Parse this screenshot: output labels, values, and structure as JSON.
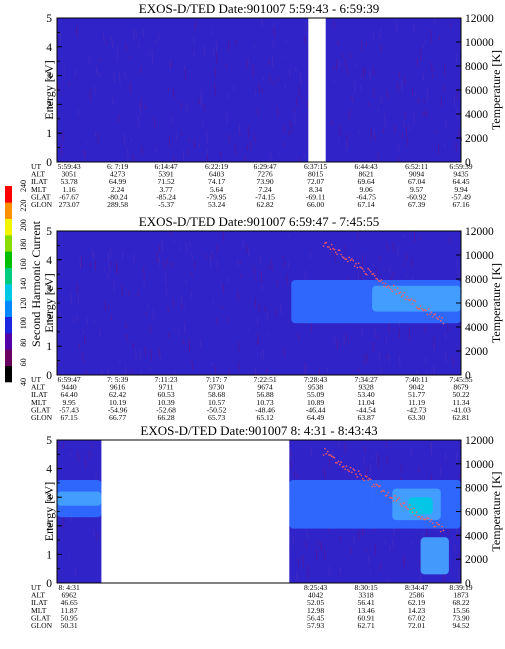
{
  "colorbar": {
    "label": "Second Harmonic Current",
    "ticks": [
      "40",
      "60",
      "80",
      "100",
      "120",
      "140",
      "160",
      "180",
      "200",
      "220",
      "240"
    ],
    "colors": [
      "#000000",
      "#6a005f",
      "#5200a8",
      "#1a26e0",
      "#0089ff",
      "#00c8e6",
      "#00cc80",
      "#00c000",
      "#88dc00",
      "#f4f400",
      "#ff9000",
      "#ff0000"
    ]
  },
  "chart_data": [
    {
      "type": "heatmap",
      "title": "EXOS-D/TED  Date:901007  5:59:43 - 6:59:39",
      "ylabel": "Energy [eV]",
      "y2label": "Temperature [K]",
      "ylim": [
        0,
        5
      ],
      "y2lim": [
        0,
        12000
      ],
      "yticks": [
        "0",
        "1",
        "2",
        "3",
        "4",
        "5"
      ],
      "y2ticks": [
        "0",
        "2000",
        "4000",
        "6000",
        "8000",
        "10000",
        "12000"
      ],
      "background": "#3024c8",
      "gaps": [
        [
          0.622,
          0.665
        ]
      ],
      "features": [],
      "ephemeris": {
        "labels": [
          "UT",
          "ALT",
          "ILAT",
          "MLT",
          "GLAT",
          "GLON"
        ],
        "columns": [
          [
            "5:59:43",
            "3051",
            "53.78",
            "1.16",
            "-67.67",
            "273.07"
          ],
          [
            "6: 7:19",
            "4273",
            "64.99",
            "2.24",
            "-80.24",
            "289.58"
          ],
          [
            "6:14:47",
            "5391",
            "71.52",
            "3.77",
            "-85.24",
            "-5.37"
          ],
          [
            "6:22:19",
            "6403",
            "74.17",
            "5.64",
            "-79.95",
            "53.24"
          ],
          [
            "6:29:47",
            "7276",
            "73.90",
            "7.24",
            "-74.15",
            "62.82"
          ],
          [
            "6:37:15",
            "8015",
            "72.07",
            "8.34",
            "-69.11",
            "66.00"
          ],
          [
            "6:44:43",
            "8621",
            "69.64",
            "9.06",
            "-64.75",
            "67.14"
          ],
          [
            "6:52:11",
            "9094",
            "67.04",
            "9.57",
            "-60.92",
            "67.39"
          ],
          [
            "6:59:39",
            "9435",
            "64.45",
            "9.94",
            "-57.49",
            "67.16"
          ]
        ]
      }
    },
    {
      "type": "heatmap",
      "title": "EXOS-D/TED  Date:901007  6:59:47 - 7:45:55",
      "ylabel": "Energy [eV]",
      "y2label": "Temperature [K]",
      "ylim": [
        0,
        5
      ],
      "y2lim": [
        0,
        12000
      ],
      "yticks": [
        "0",
        "1",
        "2",
        "3",
        "4",
        "5"
      ],
      "y2ticks": [
        "0",
        "2000",
        "4000",
        "6000",
        "8000",
        "10000",
        "12000"
      ],
      "background": "#3024c8",
      "gaps": [],
      "features": [
        {
          "x": [
            0.58,
            1.0
          ],
          "y": [
            1.8,
            3.3
          ],
          "color": "#2f6cff"
        },
        {
          "x": [
            0.78,
            1.0
          ],
          "y": [
            2.2,
            3.1
          ],
          "color": "#45a0ff"
        }
      ],
      "ephemeris": {
        "labels": [
          "UT",
          "ALT",
          "ILAT",
          "MLT",
          "GLAT",
          "GLON"
        ],
        "columns": [
          [
            "6:59:47",
            "9440",
            "64.40",
            "9.95",
            "-57.43",
            "67.15"
          ],
          [
            "7: 5:39",
            "9616",
            "62.42",
            "10.19",
            "-54.96",
            "66.77"
          ],
          [
            "7:11:23",
            "9711",
            "60.53",
            "10.39",
            "-52.68",
            "66.28"
          ],
          [
            "7:17: 7",
            "9730",
            "58.68",
            "10.57",
            "-50.52",
            "65.73"
          ],
          [
            "7:22:51",
            "9674",
            "56.88",
            "10.73",
            "-48.46",
            "65.12"
          ],
          [
            "7:28:43",
            "9538",
            "55.09",
            "10.89",
            "-46.44",
            "64.49"
          ],
          [
            "7:34:27",
            "9328",
            "53.40",
            "11.04",
            "-44.54",
            "63.87"
          ],
          [
            "7:40:11",
            "9042",
            "51.77",
            "11.19",
            "-42.73",
            "63.30"
          ],
          [
            "7:45:55",
            "8679",
            "50.22",
            "11.34",
            "-41.03",
            "62.81"
          ]
        ]
      }
    },
    {
      "type": "heatmap",
      "title": "EXOS-D/TED  Date:901007  8: 4:31 - 8:43:43",
      "ylabel": "Energy [eV]",
      "y2label": "Temperature [K]",
      "ylim": [
        0,
        5
      ],
      "y2lim": [
        0,
        12000
      ],
      "yticks": [
        "0",
        "1",
        "2",
        "3",
        "4",
        "5"
      ],
      "y2ticks": [
        "0",
        "2000",
        "4000",
        "6000",
        "8000",
        "10000",
        "12000"
      ],
      "background": "#3024c8",
      "gaps": [
        [
          0.11,
          0.575
        ]
      ],
      "features": [
        {
          "x": [
            0.0,
            0.11
          ],
          "y": [
            2.3,
            3.6
          ],
          "color": "#2f6cff"
        },
        {
          "x": [
            0.0,
            0.11
          ],
          "y": [
            2.7,
            3.2
          ],
          "color": "#45a0ff"
        },
        {
          "x": [
            0.575,
            1.0
          ],
          "y": [
            1.9,
            3.6
          ],
          "color": "#2f6cff"
        },
        {
          "x": [
            0.83,
            0.95
          ],
          "y": [
            2.2,
            3.3
          ],
          "color": "#45a0ff"
        },
        {
          "x": [
            0.87,
            0.93
          ],
          "y": [
            2.4,
            3.0
          ],
          "color": "#00c8e6"
        },
        {
          "x": [
            0.9,
            0.97
          ],
          "y": [
            0.3,
            1.6
          ],
          "color": "#45a0ff"
        }
      ],
      "ephemeris": {
        "labels": [
          "UT",
          "ALT",
          "ILAT",
          "MLT",
          "GLAT",
          "GLON"
        ],
        "columns": [
          [
            "8: 4:31",
            "6962",
            "46.65",
            "11.87",
            "50.95",
            "50.31"
          ],
          [
            "",
            "",
            "",
            "",
            "",
            ""
          ],
          [
            "",
            "",
            "",
            "",
            "",
            ""
          ],
          [
            "",
            "",
            "",
            "",
            "",
            ""
          ],
          [
            "",
            "",
            "",
            "",
            "",
            ""
          ],
          [
            "8:25:43",
            "4042",
            "52.05",
            "12.98",
            "56.45",
            "57.93"
          ],
          [
            "8:30:15",
            "3318",
            "56.41",
            "13.46",
            "60.91",
            "62.71"
          ],
          [
            "8:34:47",
            "2586",
            "62.19",
            "14.23",
            "67.02",
            "72.01"
          ],
          [
            "8:39:19",
            "1873",
            "68.22",
            "15.56",
            "73.90",
            "94.52"
          ]
        ]
      }
    }
  ]
}
